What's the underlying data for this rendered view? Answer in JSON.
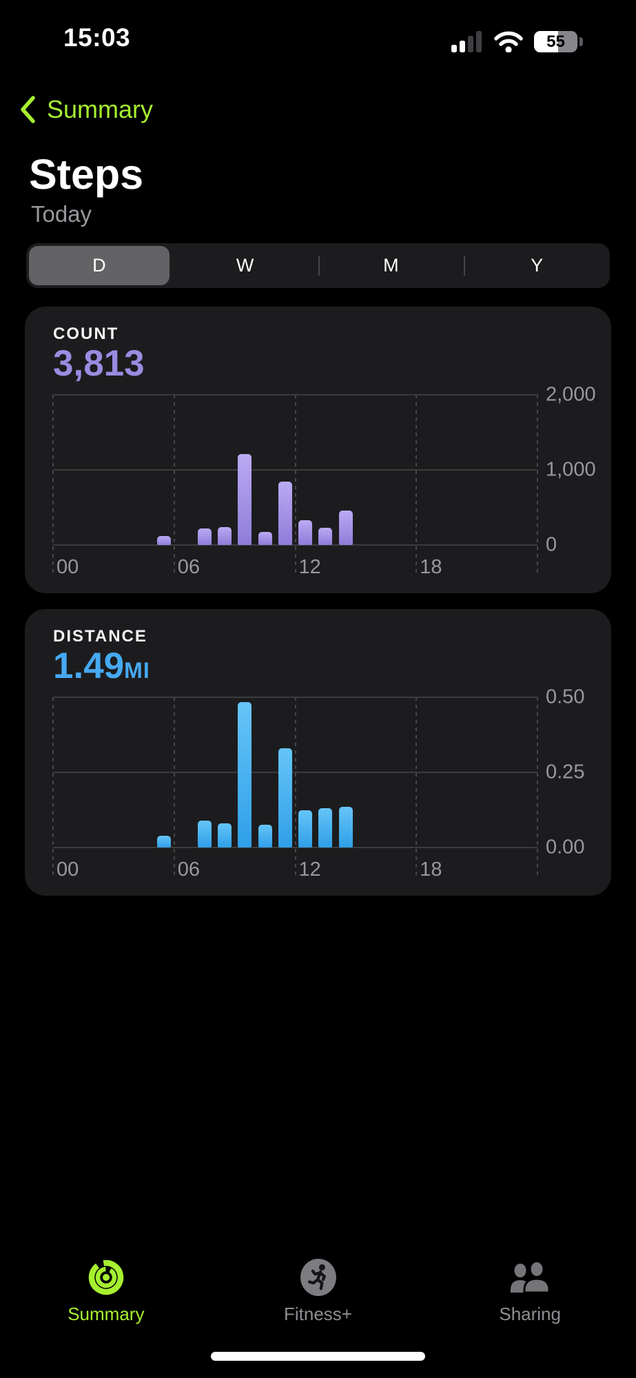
{
  "status_bar": {
    "time": "15:03",
    "battery_percent": "55",
    "signal_bars_filled": 2,
    "signal_bars_total": 4
  },
  "nav": {
    "back_label": "Summary"
  },
  "header": {
    "title": "Steps",
    "subtitle": "Today"
  },
  "range_selector": {
    "options": [
      "D",
      "W",
      "M",
      "Y"
    ],
    "selected_index": 0
  },
  "colors": {
    "accent_green": "#a6f02f",
    "accent_purple": "#9b8be1",
    "accent_blue": "#46a9f1",
    "card_bg": "#1c1c1e",
    "axis_text": "#98989d"
  },
  "chart_data": [
    {
      "type": "bar",
      "card_caption": "COUNT",
      "display_value": "3,813",
      "display_unit": "",
      "accent": "#9b8be1",
      "bar_gradient_top": "#bbaaf3",
      "bar_gradient_bottom": "#8f7cd9",
      "x_range_hours": [
        0,
        24
      ],
      "x_ticks": [
        {
          "hour": 0,
          "label": "00"
        },
        {
          "hour": 6,
          "label": "06"
        },
        {
          "hour": 12,
          "label": "12"
        },
        {
          "hour": 18,
          "label": "18"
        }
      ],
      "ylim": [
        0,
        2000
      ],
      "y_ticks": [
        {
          "value": 0,
          "label": "0"
        },
        {
          "value": 1000,
          "label": "1,000"
        },
        {
          "value": 2000,
          "label": "2,000"
        }
      ],
      "bars": [
        {
          "hour": 5,
          "value": 115
        },
        {
          "hour": 7,
          "value": 220
        },
        {
          "hour": 8,
          "value": 240
        },
        {
          "hour": 9,
          "value": 1210
        },
        {
          "hour": 10,
          "value": 170
        },
        {
          "hour": 11,
          "value": 840
        },
        {
          "hour": 12,
          "value": 330
        },
        {
          "hour": 13,
          "value": 230
        },
        {
          "hour": 14,
          "value": 458
        }
      ]
    },
    {
      "type": "bar",
      "card_caption": "DISTANCE",
      "display_value": "1.49",
      "display_unit": "MI",
      "accent": "#46a9f1",
      "bar_gradient_top": "#66c5f8",
      "bar_gradient_bottom": "#2f9fe8",
      "x_range_hours": [
        0,
        24
      ],
      "x_ticks": [
        {
          "hour": 0,
          "label": "00"
        },
        {
          "hour": 6,
          "label": "06"
        },
        {
          "hour": 12,
          "label": "12"
        },
        {
          "hour": 18,
          "label": "18"
        }
      ],
      "ylim": [
        0,
        0.5
      ],
      "y_ticks": [
        {
          "value": 0,
          "label": "0.00"
        },
        {
          "value": 0.25,
          "label": "0.25"
        },
        {
          "value": 0.5,
          "label": "0.50"
        }
      ],
      "bars": [
        {
          "hour": 5,
          "value": 0.04
        },
        {
          "hour": 7,
          "value": 0.09
        },
        {
          "hour": 8,
          "value": 0.08
        },
        {
          "hour": 9,
          "value": 0.485
        },
        {
          "hour": 10,
          "value": 0.075
        },
        {
          "hour": 11,
          "value": 0.33
        },
        {
          "hour": 12,
          "value": 0.125
        },
        {
          "hour": 13,
          "value": 0.13
        },
        {
          "hour": 14,
          "value": 0.135
        }
      ]
    }
  ],
  "tab_bar": {
    "items": [
      {
        "label": "Summary",
        "icon": "activity-rings-icon",
        "active": true
      },
      {
        "label": "Fitness+",
        "icon": "runner-icon",
        "active": false
      },
      {
        "label": "Sharing",
        "icon": "people-icon",
        "active": false
      }
    ]
  }
}
